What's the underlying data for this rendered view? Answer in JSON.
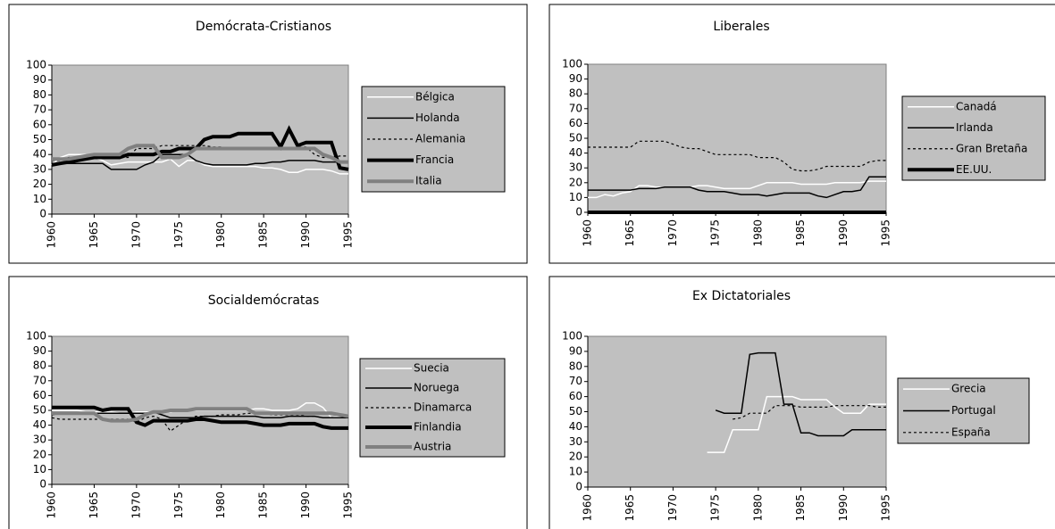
{
  "chart_data": [
    {
      "type": "line",
      "title": "Demócrata-Cristianos",
      "x": [
        1960,
        1961,
        1962,
        1963,
        1964,
        1965,
        1966,
        1967,
        1968,
        1969,
        1970,
        1971,
        1972,
        1973,
        1974,
        1975,
        1976,
        1977,
        1978,
        1979,
        1980,
        1981,
        1982,
        1983,
        1984,
        1985,
        1986,
        1987,
        1988,
        1989,
        1990,
        1991,
        1992,
        1993,
        1994,
        1995
      ],
      "xlim": [
        1960,
        1995
      ],
      "xticks": [
        1960,
        1965,
        1970,
        1975,
        1980,
        1985,
        1990,
        1995
      ],
      "ylim": [
        0,
        100
      ],
      "yticks": [
        0,
        10,
        20,
        30,
        40,
        50,
        60,
        70,
        80,
        90,
        100
      ],
      "series": [
        {
          "name": "Bélgica",
          "color": "#ffffff",
          "width": 1.5,
          "style": "solid",
          "values": [
            33,
            38,
            40,
            40,
            40,
            38,
            36,
            33,
            34,
            35,
            35,
            35,
            35,
            35,
            37,
            32,
            36,
            36,
            33,
            32,
            32,
            32,
            32,
            32,
            32,
            31,
            31,
            30,
            28,
            28,
            30,
            30,
            30,
            29,
            27,
            27
          ]
        },
        {
          "name": "Holanda",
          "color": "#000000",
          "width": 1.5,
          "style": "solid",
          "values": [
            34,
            34,
            34,
            34,
            34,
            34,
            34,
            30,
            30,
            30,
            30,
            33,
            35,
            40,
            40,
            40,
            40,
            36,
            34,
            33,
            33,
            33,
            33,
            33,
            34,
            34,
            35,
            35,
            36,
            36,
            36,
            36,
            35,
            35,
            35,
            35
          ]
        },
        {
          "name": "Alemania",
          "color": "#000000",
          "width": 1.2,
          "style": "dotted",
          "values": [
            36,
            36,
            38,
            38,
            38,
            38,
            38,
            38,
            38,
            38,
            44,
            44,
            44,
            46,
            46,
            46,
            46,
            46,
            46,
            45,
            45,
            44,
            44,
            44,
            44,
            44,
            44,
            44,
            44,
            45,
            45,
            40,
            38,
            38,
            39,
            39
          ]
        },
        {
          "name": "Francia",
          "color": "#000000",
          "width": 4,
          "style": "solid",
          "values": [
            33,
            34,
            35,
            36,
            37,
            38,
            38,
            38,
            38,
            40,
            40,
            40,
            40,
            42,
            42,
            44,
            44,
            44,
            50,
            52,
            52,
            52,
            54,
            54,
            54,
            54,
            54,
            45,
            57,
            46,
            48,
            48,
            48,
            48,
            31,
            30
          ]
        },
        {
          "name": "Italia",
          "color": "#808080",
          "width": 4,
          "style": "solid",
          "values": [
            37,
            37,
            37,
            38,
            39,
            40,
            40,
            40,
            40,
            44,
            46,
            46,
            46,
            38,
            38,
            38,
            40,
            44,
            44,
            44,
            44,
            44,
            44,
            44,
            44,
            44,
            44,
            44,
            44,
            44,
            44,
            44,
            40,
            38,
            35,
            35
          ]
        }
      ]
    },
    {
      "type": "line",
      "title": "Liberales",
      "x": [
        1960,
        1961,
        1962,
        1963,
        1964,
        1965,
        1966,
        1967,
        1968,
        1969,
        1970,
        1971,
        1972,
        1973,
        1974,
        1975,
        1976,
        1977,
        1978,
        1979,
        1980,
        1981,
        1982,
        1983,
        1984,
        1985,
        1986,
        1987,
        1988,
        1989,
        1990,
        1991,
        1992,
        1993,
        1994,
        1995
      ],
      "xlim": [
        1960,
        1995
      ],
      "xticks": [
        1960,
        1965,
        1970,
        1975,
        1980,
        1985,
        1990,
        1995
      ],
      "ylim": [
        0,
        100
      ],
      "yticks": [
        0,
        10,
        20,
        30,
        40,
        50,
        60,
        70,
        80,
        90,
        100
      ],
      "series": [
        {
          "name": "Canadá",
          "color": "#ffffff",
          "width": 1.5,
          "style": "solid",
          "values": [
            10,
            10,
            12,
            11,
            13,
            14,
            18,
            18,
            17,
            17,
            17,
            17,
            17,
            18,
            18,
            17,
            16,
            16,
            16,
            16,
            18,
            20,
            20,
            20,
            20,
            19,
            19,
            19,
            19,
            20,
            20,
            20,
            20,
            21,
            21,
            21
          ]
        },
        {
          "name": "Irlanda",
          "color": "#000000",
          "width": 1.5,
          "style": "solid",
          "values": [
            15,
            15,
            15,
            15,
            15,
            15,
            16,
            16,
            16,
            17,
            17,
            17,
            17,
            15,
            14,
            14,
            14,
            13,
            12,
            12,
            12,
            11,
            12,
            13,
            13,
            13,
            13,
            11,
            10,
            12,
            14,
            14,
            15,
            24,
            24,
            24
          ]
        },
        {
          "name": "Gran Bretaña",
          "color": "#000000",
          "width": 1.2,
          "style": "dotted",
          "values": [
            44,
            44,
            44,
            44,
            44,
            44,
            48,
            48,
            48,
            48,
            46,
            44,
            43,
            43,
            41,
            39,
            39,
            39,
            39,
            39,
            37,
            37,
            37,
            34,
            29,
            28,
            28,
            29,
            31,
            31,
            31,
            31,
            31,
            34,
            35,
            35
          ]
        },
        {
          "name": "EE.UU.",
          "color": "#000000",
          "width": 4,
          "style": "solid",
          "values": [
            0,
            0,
            0,
            0,
            0,
            0,
            0,
            0,
            0,
            0,
            0,
            0,
            0,
            0,
            0,
            0,
            0,
            0,
            0,
            0,
            0,
            0,
            0,
            0,
            0,
            0,
            0,
            0,
            0,
            0,
            0,
            0,
            0,
            0,
            0,
            0
          ]
        }
      ]
    },
    {
      "type": "line",
      "title": "Socialdemócratas",
      "x": [
        1960,
        1961,
        1962,
        1963,
        1964,
        1965,
        1966,
        1967,
        1968,
        1969,
        1970,
        1971,
        1972,
        1973,
        1974,
        1975,
        1976,
        1977,
        1978,
        1979,
        1980,
        1981,
        1982,
        1983,
        1984,
        1985,
        1986,
        1987,
        1988,
        1989,
        1990,
        1991,
        1992,
        1993,
        1994,
        1995
      ],
      "xlim": [
        1960,
        1995
      ],
      "xticks": [
        1960,
        1965,
        1970,
        1975,
        1980,
        1985,
        1990,
        1995
      ],
      "ylim": [
        0,
        100
      ],
      "yticks": [
        0,
        10,
        20,
        30,
        40,
        50,
        60,
        70,
        80,
        90,
        100
      ],
      "series": [
        {
          "name": "Suecia",
          "color": "#ffffff",
          "width": 1.5,
          "style": "solid",
          "values": [
            50,
            50,
            50,
            50,
            49,
            49,
            49,
            49,
            48,
            48,
            49,
            49,
            49,
            49,
            49,
            50,
            50,
            50,
            50,
            50,
            50,
            50,
            50,
            50,
            51,
            51,
            50,
            50,
            50,
            51,
            55,
            55,
            52,
            45,
            46,
            46
          ]
        },
        {
          "name": "Noruega",
          "color": "#000000",
          "width": 1.5,
          "style": "solid",
          "values": [
            47,
            48,
            48,
            48,
            48,
            48,
            48,
            48,
            48,
            48,
            48,
            48,
            49,
            47,
            45,
            45,
            45,
            45,
            46,
            46,
            46,
            46,
            46,
            46,
            46,
            45,
            45,
            45,
            46,
            46,
            46,
            46,
            45,
            45,
            45,
            45
          ]
        },
        {
          "name": "Dinamarca",
          "color": "#000000",
          "width": 1.2,
          "style": "dotted",
          "values": [
            45,
            44,
            44,
            44,
            44,
            44,
            44,
            44,
            44,
            44,
            42,
            45,
            46,
            44,
            36,
            40,
            44,
            46,
            46,
            46,
            47,
            47,
            47,
            48,
            48,
            48,
            47,
            47,
            47,
            47,
            46,
            46,
            45,
            45,
            45,
            45
          ]
        },
        {
          "name": "Finlandia",
          "color": "#000000",
          "width": 4,
          "style": "solid",
          "values": [
            52,
            52,
            52,
            52,
            52,
            52,
            50,
            51,
            51,
            51,
            42,
            40,
            43,
            43,
            43,
            43,
            43,
            44,
            44,
            43,
            42,
            42,
            42,
            42,
            41,
            40,
            40,
            40,
            41,
            41,
            41,
            41,
            39,
            38,
            38,
            38
          ]
        },
        {
          "name": "Austria",
          "color": "#808080",
          "width": 4,
          "style": "solid",
          "values": [
            48,
            48,
            48,
            48,
            48,
            48,
            44,
            43,
            43,
            43,
            44,
            47,
            49,
            49,
            50,
            50,
            50,
            51,
            51,
            51,
            51,
            51,
            51,
            51,
            48,
            48,
            48,
            48,
            48,
            48,
            48,
            48,
            48,
            48,
            47,
            46
          ]
        }
      ]
    },
    {
      "type": "line",
      "title": "Ex Dictatoriales",
      "x": [
        1960,
        1961,
        1962,
        1963,
        1964,
        1965,
        1966,
        1967,
        1968,
        1969,
        1970,
        1971,
        1972,
        1973,
        1974,
        1975,
        1976,
        1977,
        1978,
        1979,
        1980,
        1981,
        1982,
        1983,
        1984,
        1985,
        1986,
        1987,
        1988,
        1989,
        1990,
        1991,
        1992,
        1993,
        1994,
        1995
      ],
      "xlim": [
        1960,
        1995
      ],
      "xticks": [
        1960,
        1965,
        1970,
        1975,
        1980,
        1985,
        1990,
        1995
      ],
      "ylim": [
        0,
        100
      ],
      "yticks": [
        0,
        10,
        20,
        30,
        40,
        50,
        60,
        70,
        80,
        90,
        100
      ],
      "series": [
        {
          "name": "Grecia",
          "color": "#ffffff",
          "width": 1.5,
          "style": "solid",
          "values": [
            null,
            null,
            null,
            null,
            null,
            null,
            null,
            null,
            null,
            null,
            null,
            null,
            null,
            null,
            23,
            23,
            23,
            38,
            38,
            38,
            38,
            60,
            60,
            60,
            60,
            58,
            58,
            58,
            58,
            53,
            49,
            49,
            49,
            55,
            55,
            55
          ]
        },
        {
          "name": "Portugal",
          "color": "#000000",
          "width": 1.5,
          "style": "solid",
          "values": [
            null,
            null,
            null,
            null,
            null,
            null,
            null,
            null,
            null,
            null,
            null,
            null,
            null,
            null,
            null,
            51,
            49,
            49,
            49,
            88,
            89,
            89,
            89,
            55,
            55,
            36,
            36,
            34,
            34,
            34,
            34,
            38,
            38,
            38,
            38,
            38
          ]
        },
        {
          "name": "España",
          "color": "#000000",
          "width": 1.2,
          "style": "dotted",
          "values": [
            null,
            null,
            null,
            null,
            null,
            null,
            null,
            null,
            null,
            null,
            null,
            null,
            null,
            null,
            null,
            null,
            null,
            45,
            46,
            49,
            49,
            49,
            54,
            54,
            54,
            53,
            53,
            53,
            53,
            54,
            54,
            54,
            54,
            54,
            53,
            53
          ]
        }
      ]
    }
  ]
}
